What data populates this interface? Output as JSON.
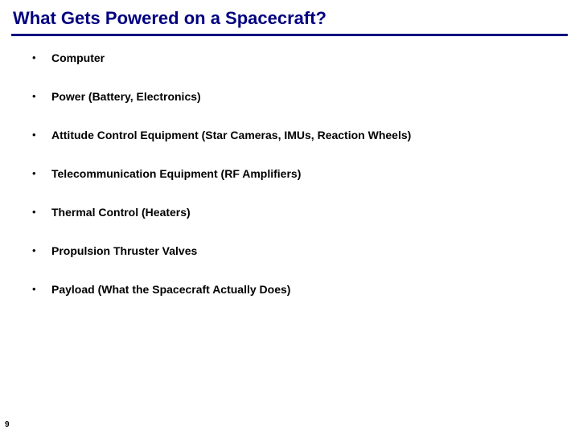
{
  "title": "What Gets Powered on a Spacecraft?",
  "title_color": "#000080",
  "underline_color": "#000080",
  "background_color": "#ffffff",
  "text_color": "#000000",
  "title_fontsize": 22,
  "bullet_fontsize": 14,
  "bullets": [
    {
      "text": "Computer"
    },
    {
      "text": "Power (Battery, Electronics)"
    },
    {
      "text": "Attitude Control Equipment (Star Cameras, IMUs, Reaction Wheels)"
    },
    {
      "text": "Telecommunication Equipment (RF Amplifiers)"
    },
    {
      "text": "Thermal Control (Heaters)"
    },
    {
      "text": "Propulsion Thruster Valves"
    },
    {
      "text": "Payload (What the Spacecraft Actually Does)"
    }
  ],
  "page_number": "9"
}
